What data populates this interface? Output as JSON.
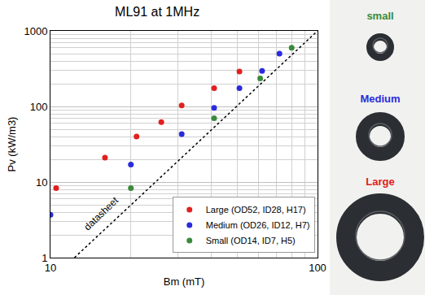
{
  "chart_data": {
    "type": "scatter",
    "title": "ML91 at 1MHz",
    "x_label": "Bm (mT)",
    "y_label": "Pv (kW/m3)",
    "log": true,
    "grid": true,
    "legend": "lower right",
    "xlim": [
      10,
      100
    ],
    "xticks": [
      10,
      100
    ],
    "ylim": [
      1,
      1000
    ],
    "yticks": [
      1,
      10,
      100,
      1000
    ],
    "series": [
      {
        "name": "Large (OD52, ID28, H17)",
        "color": "#e02020",
        "marker": "circle",
        "x": [
          10.5,
          16,
          21,
          26,
          31,
          41,
          51
        ],
        "values": [
          8.3,
          21,
          40,
          62,
          103,
          175,
          290
        ]
      },
      {
        "name": "Medium (OD26, ID12, H7)",
        "color": "#2b2bdc",
        "marker": "circle",
        "x": [
          10,
          20,
          31,
          41,
          51,
          62,
          72
        ],
        "values": [
          3.7,
          17,
          43,
          96,
          175,
          295,
          500
        ]
      },
      {
        "name": "Small (OD14, ID7, H5)",
        "color": "#3a8a3a",
        "marker": "circle",
        "x": [
          20,
          41,
          61,
          80
        ],
        "values": [
          8.3,
          70,
          235,
          600
        ]
      },
      {
        "name": "datasheet",
        "type": "line",
        "line_style": "dotted",
        "color": "#000000",
        "x": [
          12.3,
          100
        ],
        "values": [
          1,
          1000
        ]
      }
    ]
  },
  "photo": {
    "labels": [
      {
        "text": "small",
        "color": "#3a8a3a"
      },
      {
        "text": "Medium",
        "color": "#2b2bdc"
      },
      {
        "text": "Large",
        "color": "#e02020"
      }
    ]
  }
}
